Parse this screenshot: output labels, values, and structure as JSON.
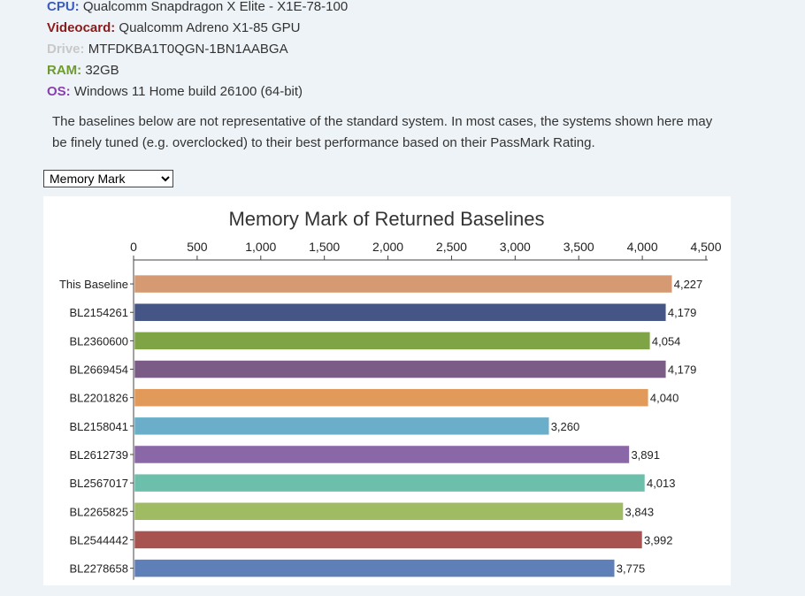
{
  "specs": [
    {
      "key": "CPU:",
      "value": "Qualcomm Snapdragon X Elite - X1E-78-100",
      "color": "#3b5bbf"
    },
    {
      "key": "Videocard:",
      "value": "Qualcomm Adreno X1-85 GPU",
      "color": "#8b1a1a"
    },
    {
      "key": "Drive:",
      "value": "MTFDKBA1T0QGN-1BN1AABGA",
      "color": "#c8c8c8"
    },
    {
      "key": "RAM:",
      "value": "32GB",
      "color": "#6e9a2f"
    },
    {
      "key": "OS:",
      "value": "Windows 11 Home build 26100 (64-bit)",
      "color": "#8a3fb0"
    }
  ],
  "note": "The baselines below are not representative of the standard system. In most cases, the systems shown here may be finely tuned (e.g. overclocked) to their best performance based on their PassMark Rating.",
  "select": {
    "selected": "Memory Mark"
  },
  "chart_data": {
    "type": "bar",
    "orientation": "horizontal",
    "title": "Memory Mark of Returned Baselines",
    "xlim": [
      0,
      4500
    ],
    "ticks": [
      0,
      500,
      1000,
      1500,
      2000,
      2500,
      3000,
      3500,
      4000,
      4500
    ],
    "tick_labels": [
      "0",
      "500",
      "1,000",
      "1,500",
      "2,000",
      "2,500",
      "3,000",
      "3,500",
      "4,000",
      "4,500"
    ],
    "axis_position": "top",
    "grid": false,
    "categories": [
      "This Baseline",
      "BL2154261",
      "BL2360600",
      "BL2669454",
      "BL2201826",
      "BL2158041",
      "BL2612739",
      "BL2567017",
      "BL2265825",
      "BL2544442",
      "BL2278658"
    ],
    "values": [
      4227,
      4179,
      4054,
      4179,
      4040,
      3260,
      3891,
      4013,
      3843,
      3992,
      3775
    ],
    "value_labels": [
      "4,227",
      "4,179",
      "4,054",
      "4,179",
      "4,040",
      "3,260",
      "3,891",
      "4,013",
      "3,843",
      "3,992",
      "3,775"
    ],
    "colors": [
      "#d69a72",
      "#445586",
      "#7fa445",
      "#7a5c87",
      "#e29a5a",
      "#6aaec9",
      "#8a67a6",
      "#6cbfaa",
      "#9fbc63",
      "#a85350",
      "#5f7fb9"
    ]
  }
}
